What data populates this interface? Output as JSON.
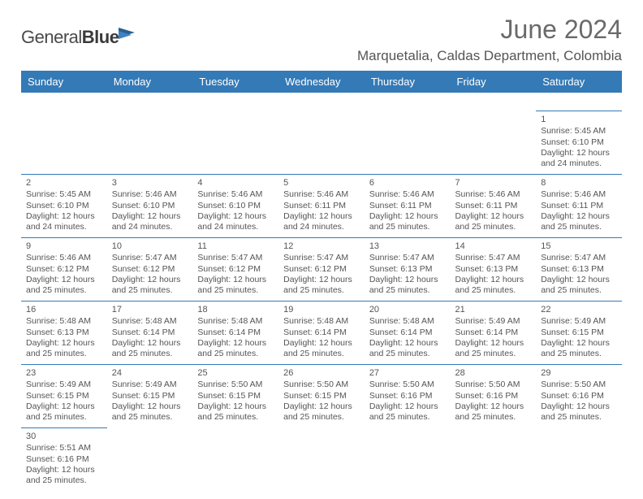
{
  "brand": {
    "part1": "General",
    "part2": "Blue"
  },
  "title": "June 2024",
  "location": "Marquetalia, Caldas Department, Colombia",
  "colors": {
    "header_bg": "#347ab7",
    "header_fg": "#ffffff",
    "text": "#555555",
    "rule": "#347ab7"
  },
  "daynames": [
    "Sunday",
    "Monday",
    "Tuesday",
    "Wednesday",
    "Thursday",
    "Friday",
    "Saturday"
  ],
  "weeks": [
    [
      null,
      null,
      null,
      null,
      null,
      null,
      {
        "n": "1",
        "sr": "Sunrise: 5:45 AM",
        "ss": "Sunset: 6:10 PM",
        "d1": "Daylight: 12 hours",
        "d2": "and 24 minutes."
      }
    ],
    [
      {
        "n": "2",
        "sr": "Sunrise: 5:45 AM",
        "ss": "Sunset: 6:10 PM",
        "d1": "Daylight: 12 hours",
        "d2": "and 24 minutes."
      },
      {
        "n": "3",
        "sr": "Sunrise: 5:46 AM",
        "ss": "Sunset: 6:10 PM",
        "d1": "Daylight: 12 hours",
        "d2": "and 24 minutes."
      },
      {
        "n": "4",
        "sr": "Sunrise: 5:46 AM",
        "ss": "Sunset: 6:10 PM",
        "d1": "Daylight: 12 hours",
        "d2": "and 24 minutes."
      },
      {
        "n": "5",
        "sr": "Sunrise: 5:46 AM",
        "ss": "Sunset: 6:11 PM",
        "d1": "Daylight: 12 hours",
        "d2": "and 24 minutes."
      },
      {
        "n": "6",
        "sr": "Sunrise: 5:46 AM",
        "ss": "Sunset: 6:11 PM",
        "d1": "Daylight: 12 hours",
        "d2": "and 25 minutes."
      },
      {
        "n": "7",
        "sr": "Sunrise: 5:46 AM",
        "ss": "Sunset: 6:11 PM",
        "d1": "Daylight: 12 hours",
        "d2": "and 25 minutes."
      },
      {
        "n": "8",
        "sr": "Sunrise: 5:46 AM",
        "ss": "Sunset: 6:11 PM",
        "d1": "Daylight: 12 hours",
        "d2": "and 25 minutes."
      }
    ],
    [
      {
        "n": "9",
        "sr": "Sunrise: 5:46 AM",
        "ss": "Sunset: 6:12 PM",
        "d1": "Daylight: 12 hours",
        "d2": "and 25 minutes."
      },
      {
        "n": "10",
        "sr": "Sunrise: 5:47 AM",
        "ss": "Sunset: 6:12 PM",
        "d1": "Daylight: 12 hours",
        "d2": "and 25 minutes."
      },
      {
        "n": "11",
        "sr": "Sunrise: 5:47 AM",
        "ss": "Sunset: 6:12 PM",
        "d1": "Daylight: 12 hours",
        "d2": "and 25 minutes."
      },
      {
        "n": "12",
        "sr": "Sunrise: 5:47 AM",
        "ss": "Sunset: 6:12 PM",
        "d1": "Daylight: 12 hours",
        "d2": "and 25 minutes."
      },
      {
        "n": "13",
        "sr": "Sunrise: 5:47 AM",
        "ss": "Sunset: 6:13 PM",
        "d1": "Daylight: 12 hours",
        "d2": "and 25 minutes."
      },
      {
        "n": "14",
        "sr": "Sunrise: 5:47 AM",
        "ss": "Sunset: 6:13 PM",
        "d1": "Daylight: 12 hours",
        "d2": "and 25 minutes."
      },
      {
        "n": "15",
        "sr": "Sunrise: 5:47 AM",
        "ss": "Sunset: 6:13 PM",
        "d1": "Daylight: 12 hours",
        "d2": "and 25 minutes."
      }
    ],
    [
      {
        "n": "16",
        "sr": "Sunrise: 5:48 AM",
        "ss": "Sunset: 6:13 PM",
        "d1": "Daylight: 12 hours",
        "d2": "and 25 minutes."
      },
      {
        "n": "17",
        "sr": "Sunrise: 5:48 AM",
        "ss": "Sunset: 6:14 PM",
        "d1": "Daylight: 12 hours",
        "d2": "and 25 minutes."
      },
      {
        "n": "18",
        "sr": "Sunrise: 5:48 AM",
        "ss": "Sunset: 6:14 PM",
        "d1": "Daylight: 12 hours",
        "d2": "and 25 minutes."
      },
      {
        "n": "19",
        "sr": "Sunrise: 5:48 AM",
        "ss": "Sunset: 6:14 PM",
        "d1": "Daylight: 12 hours",
        "d2": "and 25 minutes."
      },
      {
        "n": "20",
        "sr": "Sunrise: 5:48 AM",
        "ss": "Sunset: 6:14 PM",
        "d1": "Daylight: 12 hours",
        "d2": "and 25 minutes."
      },
      {
        "n": "21",
        "sr": "Sunrise: 5:49 AM",
        "ss": "Sunset: 6:14 PM",
        "d1": "Daylight: 12 hours",
        "d2": "and 25 minutes."
      },
      {
        "n": "22",
        "sr": "Sunrise: 5:49 AM",
        "ss": "Sunset: 6:15 PM",
        "d1": "Daylight: 12 hours",
        "d2": "and 25 minutes."
      }
    ],
    [
      {
        "n": "23",
        "sr": "Sunrise: 5:49 AM",
        "ss": "Sunset: 6:15 PM",
        "d1": "Daylight: 12 hours",
        "d2": "and 25 minutes."
      },
      {
        "n": "24",
        "sr": "Sunrise: 5:49 AM",
        "ss": "Sunset: 6:15 PM",
        "d1": "Daylight: 12 hours",
        "d2": "and 25 minutes."
      },
      {
        "n": "25",
        "sr": "Sunrise: 5:50 AM",
        "ss": "Sunset: 6:15 PM",
        "d1": "Daylight: 12 hours",
        "d2": "and 25 minutes."
      },
      {
        "n": "26",
        "sr": "Sunrise: 5:50 AM",
        "ss": "Sunset: 6:15 PM",
        "d1": "Daylight: 12 hours",
        "d2": "and 25 minutes."
      },
      {
        "n": "27",
        "sr": "Sunrise: 5:50 AM",
        "ss": "Sunset: 6:16 PM",
        "d1": "Daylight: 12 hours",
        "d2": "and 25 minutes."
      },
      {
        "n": "28",
        "sr": "Sunrise: 5:50 AM",
        "ss": "Sunset: 6:16 PM",
        "d1": "Daylight: 12 hours",
        "d2": "and 25 minutes."
      },
      {
        "n": "29",
        "sr": "Sunrise: 5:50 AM",
        "ss": "Sunset: 6:16 PM",
        "d1": "Daylight: 12 hours",
        "d2": "and 25 minutes."
      }
    ],
    [
      {
        "n": "30",
        "sr": "Sunrise: 5:51 AM",
        "ss": "Sunset: 6:16 PM",
        "d1": "Daylight: 12 hours",
        "d2": "and 25 minutes."
      },
      null,
      null,
      null,
      null,
      null,
      null
    ]
  ]
}
